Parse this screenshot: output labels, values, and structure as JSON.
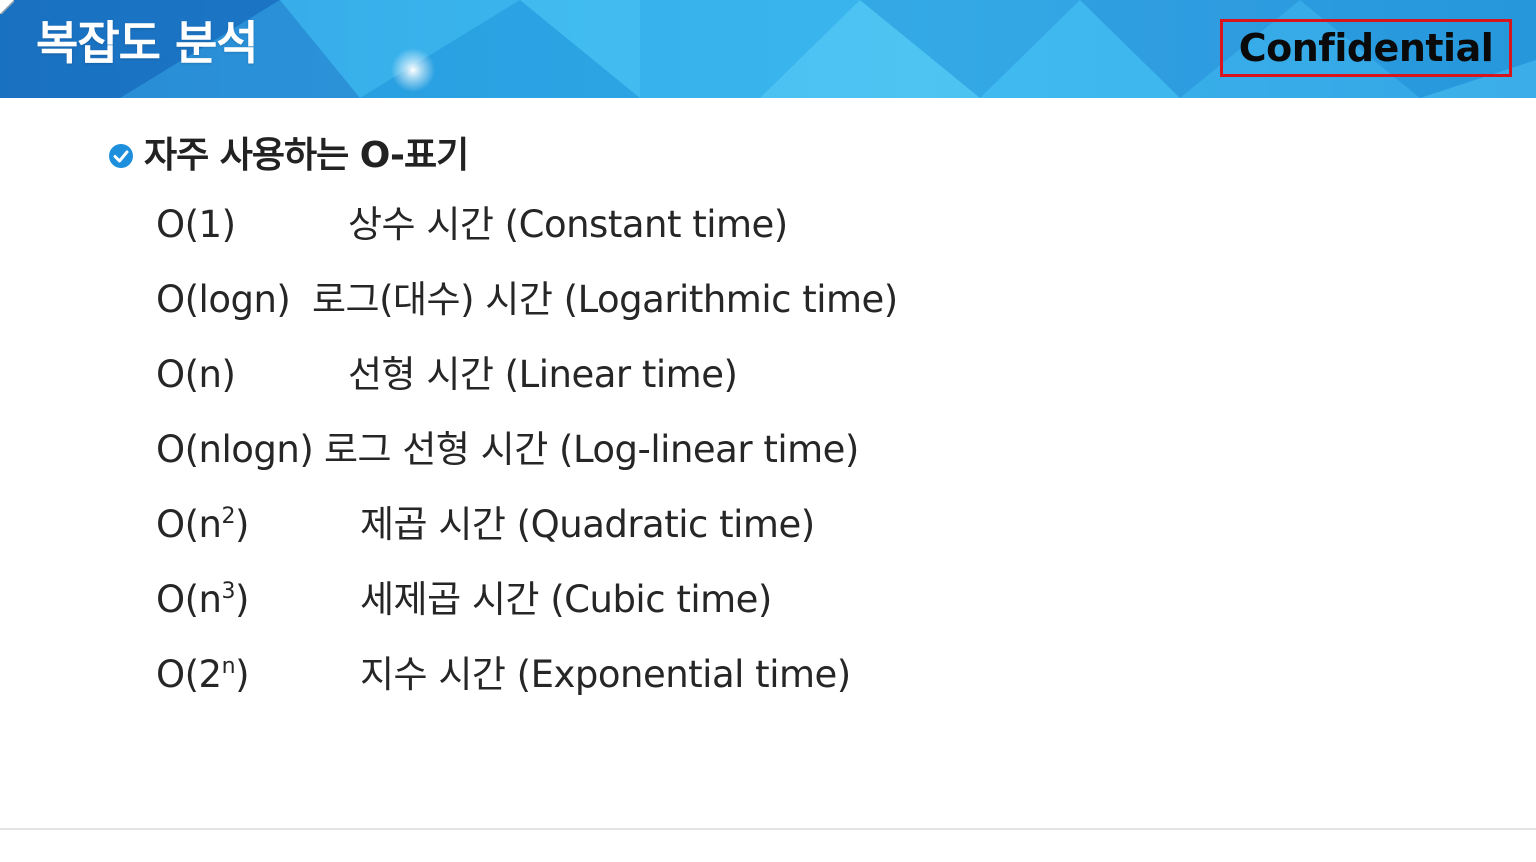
{
  "header": {
    "title": "복잡도 분석",
    "badge": "Confidential",
    "colors": {
      "base": "#2fa9e6",
      "light": "#49c3f2",
      "dark": "#1676c4",
      "badge_border": "#d8151c"
    }
  },
  "section": {
    "icon": "check-circle-icon",
    "heading": "자주 사용하는 O-표기"
  },
  "rows": [
    {
      "notation_base": "O(1)",
      "notation_exp": "",
      "notation_close": "",
      "desc": "상수 시간 (Constant time)"
    },
    {
      "notation_base": "O(logn)",
      "notation_exp": "",
      "notation_close": "",
      "desc": "로그(대수) 시간 (Logarithmic time)"
    },
    {
      "notation_base": "O(n)",
      "notation_exp": "",
      "notation_close": "",
      "desc": "선형 시간 (Linear time)"
    },
    {
      "notation_base": "O(nlogn)",
      "notation_exp": "",
      "notation_close": "",
      "desc": "로그 선형 시간 (Log-linear time)"
    },
    {
      "notation_base": "O(n",
      "notation_exp": "2",
      "notation_close": ")",
      "desc": "제곱 시간 (Quadratic time)"
    },
    {
      "notation_base": "O(n",
      "notation_exp": "3",
      "notation_close": ")",
      "desc": "세제곱 시간 (Cubic time)"
    },
    {
      "notation_base": "O(2",
      "notation_exp": "n",
      "notation_close": ")",
      "desc": "지수 시간 (Exponential time)"
    }
  ]
}
